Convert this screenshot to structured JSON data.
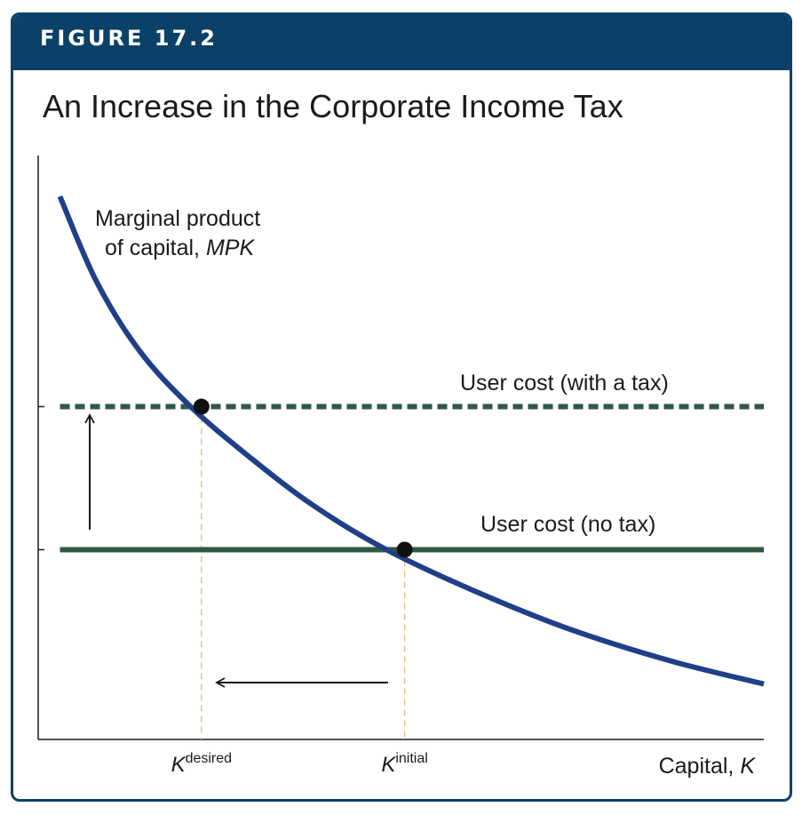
{
  "header": {
    "figure_label": "FIGURE 17.2"
  },
  "colors": {
    "header_bg": "#0b4168",
    "mpk_curve": "#1f3f88",
    "user_cost_tax": "#2f5a40",
    "user_cost_no_tax": "#2f5a40",
    "guide": "#e8b87a"
  },
  "chart_data": {
    "type": "line",
    "title": "An Increase in the Corporate Income Tax",
    "xlabel_main": "Capital, ",
    "xlabel_var": "K",
    "xlim": [
      0,
      10
    ],
    "ylim": [
      0,
      10
    ],
    "grid": false,
    "series": [
      {
        "name": "Marginal product of capital, MPK",
        "label_line1": "Marginal product",
        "label_line2_main": "of capital, ",
        "label_line2_var": "MPK",
        "style": "solid curve",
        "x": [
          0.3,
          0.8,
          1.4,
          2.1,
          2.9,
          3.8,
          4.8,
          6.0,
          7.3,
          8.7,
          10.0
        ],
        "y": [
          9.3,
          7.85,
          6.65,
          5.7,
          4.85,
          4.0,
          3.25,
          2.55,
          1.9,
          1.35,
          0.95
        ]
      },
      {
        "name": "User cost (with a tax)",
        "style": "dashed",
        "x": [
          0.3,
          10.0
        ],
        "y": [
          5.7,
          5.7
        ]
      },
      {
        "name": "User cost (no tax)",
        "style": "solid",
        "x": [
          0.3,
          10.0
        ],
        "y": [
          3.25,
          3.25
        ]
      }
    ],
    "points": [
      {
        "name": "desired",
        "x": 2.25,
        "y": 5.7
      },
      {
        "name": "initial",
        "x": 5.05,
        "y": 3.25
      }
    ],
    "x_ticks": [
      {
        "base": "K",
        "sup": "desired",
        "x": 2.25
      },
      {
        "base": "K",
        "sup": "initial",
        "x": 5.05
      }
    ],
    "arrows": [
      {
        "direction": "up",
        "meaning": "user cost rises"
      },
      {
        "direction": "left",
        "meaning": "capital falls"
      }
    ]
  }
}
